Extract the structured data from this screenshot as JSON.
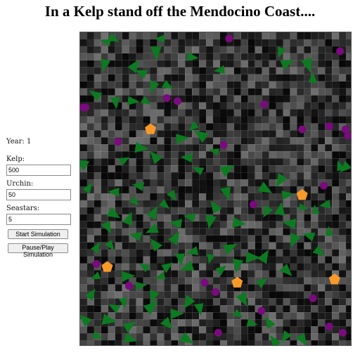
{
  "title": "In a Kelp stand off the Mendocino Coast....",
  "controls": {
    "year_label": "Year: ",
    "year_value": "1",
    "kelp_label": "Kelp:",
    "kelp_value": "500",
    "urchin_label": "Urchin:",
    "urchin_value": "50",
    "seastar_label": "Seastars:",
    "seastar_value": "5",
    "start_label": "Start Simulation",
    "pause_label": "Pause/Play Simulation"
  },
  "simulation": {
    "seastars": [
      [
        0.26,
        0.31
      ],
      [
        0.82,
        0.52
      ],
      [
        0.1,
        0.75
      ],
      [
        0.58,
        0.8
      ],
      [
        0.94,
        0.79
      ]
    ],
    "urchins": [
      [
        0.55,
        0.02
      ],
      [
        0.96,
        0.06
      ],
      [
        0.32,
        0.21
      ],
      [
        0.36,
        0.22
      ],
      [
        0.68,
        0.23
      ],
      [
        0.01,
        0.24
      ],
      [
        0.02,
        0.24
      ],
      [
        0.82,
        0.31
      ],
      [
        0.92,
        0.3
      ],
      [
        0.98,
        0.31
      ],
      [
        0.99,
        0.33
      ],
      [
        0.14,
        0.35
      ],
      [
        0.53,
        0.36
      ],
      [
        0.9,
        0.49
      ],
      [
        0.64,
        0.55
      ],
      [
        0.06,
        0.74
      ],
      [
        0.18,
        0.81
      ],
      [
        0.46,
        0.8
      ],
      [
        0.5,
        0.83
      ],
      [
        0.86,
        0.85
      ],
      [
        0.67,
        0.89
      ],
      [
        0.92,
        0.94
      ],
      [
        0.97,
        0.96
      ],
      [
        0.51,
        0.96
      ]
    ],
    "kelp": [
      [
        0.1,
        0.03
      ],
      [
        0.12,
        0.02
      ],
      [
        0.3,
        0.02
      ],
      [
        0.28,
        0.06
      ],
      [
        0.09,
        0.1
      ],
      [
        0.2,
        0.11
      ],
      [
        0.23,
        0.13
      ],
      [
        0.27,
        0.17
      ],
      [
        0.24,
        0.22
      ],
      [
        0.13,
        0.22
      ],
      [
        0.32,
        0.17
      ],
      [
        0.19,
        0.22
      ],
      [
        0.06,
        0.2
      ],
      [
        0.41,
        0.08
      ],
      [
        0.52,
        0.12
      ],
      [
        0.74,
        0.06
      ],
      [
        0.76,
        0.1
      ],
      [
        0.84,
        0.1
      ],
      [
        0.86,
        0.15
      ],
      [
        0.42,
        0.3
      ],
      [
        0.45,
        0.33
      ],
      [
        0.37,
        0.34
      ],
      [
        0.28,
        0.4
      ],
      [
        0.16,
        0.41
      ],
      [
        0.22,
        0.37
      ],
      [
        0.5,
        0.38
      ],
      [
        0.01,
        0.42
      ],
      [
        0.22,
        0.49
      ],
      [
        0.44,
        0.44
      ],
      [
        0.54,
        0.44
      ],
      [
        0.54,
        0.51
      ],
      [
        0.5,
        0.56
      ],
      [
        0.48,
        0.6
      ],
      [
        0.41,
        0.59
      ],
      [
        0.36,
        0.61
      ],
      [
        0.27,
        0.58
      ],
      [
        0.2,
        0.54
      ],
      [
        0.18,
        0.6
      ],
      [
        0.21,
        0.65
      ],
      [
        0.1,
        0.62
      ],
      [
        0.11,
        0.68
      ],
      [
        0.06,
        0.69
      ],
      [
        0.28,
        0.68
      ],
      [
        0.35,
        0.66
      ],
      [
        0.42,
        0.7
      ],
      [
        0.37,
        0.72
      ],
      [
        0.32,
        0.75
      ],
      [
        0.4,
        0.75
      ],
      [
        0.48,
        0.72
      ],
      [
        0.52,
        0.76
      ],
      [
        0.58,
        0.74
      ],
      [
        0.55,
        0.69
      ],
      [
        0.58,
        0.61
      ],
      [
        0.69,
        0.57
      ],
      [
        0.68,
        0.5
      ],
      [
        0.74,
        0.47
      ],
      [
        0.76,
        0.52
      ],
      [
        0.74,
        0.57
      ],
      [
        0.78,
        0.61
      ],
      [
        0.82,
        0.56
      ],
      [
        0.79,
        0.66
      ],
      [
        0.85,
        0.65
      ],
      [
        0.87,
        0.57
      ],
      [
        0.91,
        0.55
      ],
      [
        0.96,
        0.43
      ],
      [
        0.98,
        0.43
      ],
      [
        0.88,
        0.7
      ],
      [
        0.92,
        0.64
      ],
      [
        0.4,
        0.4
      ],
      [
        0.13,
        0.51
      ],
      [
        0.03,
        0.5
      ],
      [
        0.12,
        0.58
      ],
      [
        0.27,
        0.63
      ],
      [
        0.31,
        0.55
      ],
      [
        0.34,
        0.52
      ],
      [
        0.17,
        0.78
      ],
      [
        0.22,
        0.81
      ],
      [
        0.24,
        0.75
      ],
      [
        0.3,
        0.78
      ],
      [
        0.26,
        0.88
      ],
      [
        0.27,
        0.84
      ],
      [
        0.16,
        0.86
      ],
      [
        0.13,
        0.88
      ],
      [
        0.1,
        0.92
      ],
      [
        0.18,
        0.94
      ],
      [
        0.18,
        0.98
      ],
      [
        0.06,
        0.97
      ],
      [
        0.04,
        0.84
      ],
      [
        0.32,
        0.93
      ],
      [
        0.4,
        0.86
      ],
      [
        0.44,
        0.88
      ],
      [
        0.39,
        0.98
      ],
      [
        0.35,
        0.9
      ],
      [
        0.58,
        0.9
      ],
      [
        0.6,
        0.85
      ],
      [
        0.63,
        0.93
      ],
      [
        0.72,
        0.99
      ],
      [
        0.76,
        0.97
      ],
      [
        0.82,
        0.98
      ],
      [
        0.7,
        0.93
      ],
      [
        0.67,
        0.8
      ],
      [
        0.76,
        0.76
      ],
      [
        0.68,
        0.72
      ],
      [
        0.63,
        0.72
      ],
      [
        0.06,
        0.78
      ],
      [
        0.02,
        0.92
      ]
    ]
  }
}
